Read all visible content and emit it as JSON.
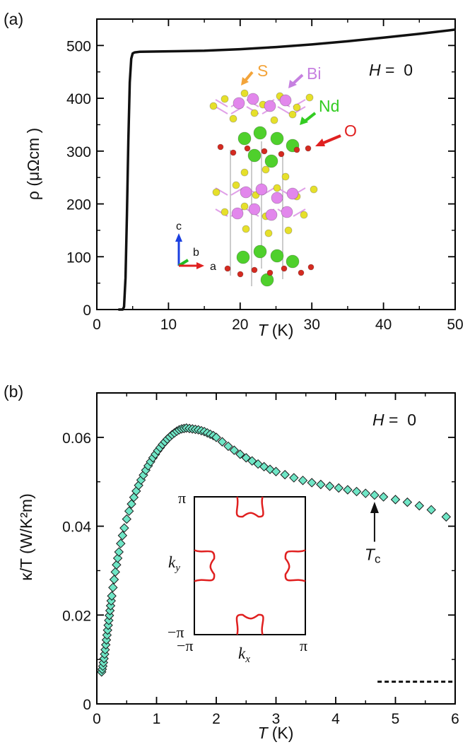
{
  "chart_data": [
    {
      "panel": "(a)",
      "type": "line",
      "xlabel_var": "T",
      "xlabel_unit": "(K)",
      "ylabel": "ρ (μΩcm )",
      "xlim": [
        0,
        50
      ],
      "ylim": [
        0,
        550
      ],
      "xticks": [
        0,
        10,
        20,
        30,
        40,
        50
      ],
      "yticks": [
        0,
        100,
        200,
        300,
        400,
        500
      ],
      "condition": {
        "var": "H",
        "rest": " =  0"
      },
      "series": [
        {
          "name": "rho",
          "x": [
            3.0,
            3.6,
            3.8,
            4.0,
            4.2,
            4.4,
            4.6,
            4.8,
            5.0,
            5.3,
            6,
            10,
            15,
            20,
            25,
            30,
            35,
            40,
            45,
            50
          ],
          "y": [
            0,
            0,
            5,
            60,
            180,
            320,
            430,
            475,
            485,
            487,
            488,
            489,
            490,
            493,
            497,
            502,
            508,
            515,
            522,
            530
          ]
        }
      ],
      "inset_structure": {
        "labels": [
          "S",
          "Bi",
          "Nd",
          "O"
        ],
        "axes_labels": [
          "c",
          "b",
          "a"
        ],
        "colors": {
          "S": "#f3a43a",
          "Bi": "#c680e0",
          "Nd": "#33cc22",
          "O": "#e02020",
          "S_atom": "#e6e02a",
          "Bi_atom": "#e287ec",
          "Nd_atom": "#4fd02c",
          "O_atom": "#d42a20"
        }
      }
    },
    {
      "panel": "(b)",
      "type": "scatter",
      "xlabel_var": "T",
      "xlabel_unit": "(K)",
      "ylabel": "κ/T (W/K²m)",
      "xlim": [
        0,
        6
      ],
      "ylim": [
        0,
        0.07
      ],
      "xticks": [
        0,
        1,
        2,
        3,
        4,
        5,
        6
      ],
      "yticks": [
        "0",
        "0.02",
        "0.04",
        "0.06"
      ],
      "ytick_values": [
        0,
        0.02,
        0.04,
        0.06
      ],
      "condition": {
        "var": "H",
        "rest": " =  0"
      },
      "marker_color": "#6fe6c6",
      "series": [
        {
          "name": "kappa_over_T",
          "x": [
            0.08,
            0.09,
            0.1,
            0.11,
            0.12,
            0.13,
            0.14,
            0.15,
            0.16,
            0.17,
            0.18,
            0.19,
            0.2,
            0.21,
            0.22,
            0.23,
            0.24,
            0.25,
            0.27,
            0.29,
            0.31,
            0.33,
            0.35,
            0.37,
            0.4,
            0.43,
            0.46,
            0.5,
            0.54,
            0.58,
            0.62,
            0.66,
            0.7,
            0.74,
            0.78,
            0.82,
            0.86,
            0.9,
            0.94,
            0.98,
            1.02,
            1.06,
            1.1,
            1.14,
            1.18,
            1.22,
            1.26,
            1.3,
            1.34,
            1.38,
            1.42,
            1.46,
            1.5,
            1.55,
            1.6,
            1.65,
            1.7,
            1.75,
            1.8,
            1.85,
            1.9,
            1.95,
            2.0,
            2.1,
            2.2,
            2.3,
            2.4,
            2.5,
            2.6,
            2.7,
            2.8,
            2.9,
            3.0,
            3.15,
            3.3,
            3.45,
            3.6,
            3.75,
            3.9,
            4.05,
            4.2,
            4.35,
            4.5,
            4.65,
            4.8,
            5.0,
            5.2,
            5.4,
            5.6,
            5.85
          ],
          "y": [
            0.0072,
            0.0078,
            0.0085,
            0.0093,
            0.0102,
            0.0112,
            0.0122,
            0.0133,
            0.0144,
            0.0155,
            0.0166,
            0.0177,
            0.0188,
            0.0199,
            0.021,
            0.0221,
            0.0232,
            0.0243,
            0.0262,
            0.028,
            0.0297,
            0.0313,
            0.0328,
            0.0342,
            0.0361,
            0.0379,
            0.0396,
            0.0416,
            0.0434,
            0.045,
            0.0465,
            0.0479,
            0.0492,
            0.0504,
            0.0515,
            0.0526,
            0.0536,
            0.0545,
            0.0554,
            0.0562,
            0.057,
            0.0577,
            0.0584,
            0.059,
            0.0596,
            0.0601,
            0.0606,
            0.061,
            0.0614,
            0.0617,
            0.0619,
            0.062,
            0.0621,
            0.062,
            0.0619,
            0.0618,
            0.0617,
            0.0615,
            0.0613,
            0.061,
            0.0607,
            0.0604,
            0.06,
            0.059,
            0.058,
            0.0571,
            0.0562,
            0.0554,
            0.0547,
            0.054,
            0.0534,
            0.0528,
            0.0523,
            0.0516,
            0.0509,
            0.0503,
            0.0498,
            0.0494,
            0.049,
            0.0486,
            0.0482,
            0.0478,
            0.0474,
            0.047,
            0.0466,
            0.046,
            0.0454,
            0.0446,
            0.0437,
            0.0421
          ]
        }
      ],
      "dashed_line": {
        "x": [
          4.7,
          6.0
        ],
        "y": 0.005
      },
      "annotation": {
        "text_var": "T",
        "text_sub": "c",
        "x": 4.65,
        "y_arrow_tip": 0.0455,
        "y_arrow_tail": 0.0365
      },
      "inset_fermi_surface": {
        "xlabel_var": "k",
        "xlabel_sub": "x",
        "ylabel_var": "k",
        "ylabel_sub": "y",
        "ticks_top": "π",
        "ticks_bottom": "−π",
        "ticks_left": "−π",
        "ticks_right": "π",
        "line_color": "#e02020"
      }
    }
  ]
}
